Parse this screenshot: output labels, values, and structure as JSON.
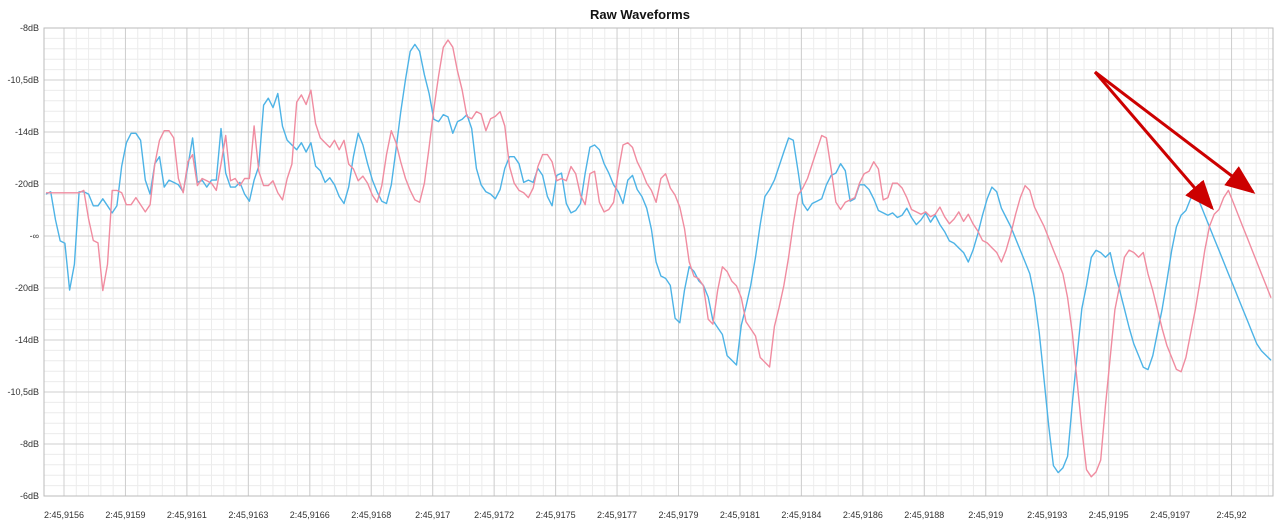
{
  "chart_data": {
    "type": "line",
    "title": "Raw Waveforms",
    "y_tick_labels": [
      "-8dB",
      "-10,5dB",
      "-14dB",
      "-20dB",
      "-∞",
      "-20dB",
      "-14dB",
      "-10,5dB",
      "-8dB",
      "-6dB"
    ],
    "x_tick_labels": [
      "2:45,9156",
      "2:45,9159",
      "2:45,9161",
      "2:45,9163",
      "2:45,9166",
      "2:45,9168",
      "2:45,917",
      "2:45,9172",
      "2:45,9175",
      "2:45,9177",
      "2:45,9179",
      "2:45,9181",
      "2:45,9184",
      "2:45,9186",
      "2:45,9188",
      "2:45,919",
      "2:45,9193",
      "2:45,9195",
      "2:45,9197",
      "2:45,92"
    ],
    "ylim": [
      -1,
      1
    ],
    "grid": true,
    "series": [
      {
        "color": "#4db3e6",
        "values": [
          0.29,
          0.3,
          0.18,
          0.09,
          0.08,
          -0.12,
          -0.01,
          0.3,
          0.3,
          0.29,
          0.24,
          0.24,
          0.27,
          0.24,
          0.21,
          0.24,
          0.41,
          0.51,
          0.55,
          0.55,
          0.52,
          0.35,
          0.29,
          0.42,
          0.45,
          0.32,
          0.35,
          0.34,
          0.33,
          0.3,
          0.41,
          0.53,
          0.34,
          0.35,
          0.32,
          0.35,
          0.35,
          0.57,
          0.38,
          0.32,
          0.32,
          0.34,
          0.29,
          0.26,
          0.35,
          0.41,
          0.67,
          0.7,
          0.66,
          0.72,
          0.58,
          0.52,
          0.5,
          0.48,
          0.51,
          0.47,
          0.51,
          0.41,
          0.39,
          0.34,
          0.36,
          0.33,
          0.28,
          0.25,
          0.32,
          0.45,
          0.55,
          0.5,
          0.42,
          0.35,
          0.3,
          0.26,
          0.25,
          0.33,
          0.48,
          0.64,
          0.78,
          0.9,
          0.93,
          0.9,
          0.8,
          0.72,
          0.61,
          0.6,
          0.63,
          0.62,
          0.55,
          0.6,
          0.61,
          0.63,
          0.57,
          0.4,
          0.33,
          0.3,
          0.29,
          0.27,
          0.31,
          0.4,
          0.45,
          0.45,
          0.42,
          0.34,
          0.35,
          0.34,
          0.4,
          0.37,
          0.28,
          0.24,
          0.37,
          0.38,
          0.25,
          0.21,
          0.22,
          0.25,
          0.38,
          0.49,
          0.5,
          0.48,
          0.42,
          0.38,
          0.33,
          0.3,
          0.25,
          0.35,
          0.37,
          0.31,
          0.28,
          0.23,
          0.14,
          0.0,
          -0.06,
          -0.07,
          -0.1,
          -0.24,
          -0.26,
          -0.12,
          -0.02,
          -0.04,
          -0.08,
          -0.1,
          -0.15,
          -0.25,
          -0.28,
          -0.31,
          -0.4,
          -0.42,
          -0.44,
          -0.27,
          -0.19,
          -0.1,
          0.02,
          0.16,
          0.28,
          0.31,
          0.35,
          0.41,
          0.47,
          0.53,
          0.52,
          0.39,
          0.25,
          0.22,
          0.25,
          0.26,
          0.27,
          0.33,
          0.37,
          0.38,
          0.42,
          0.39,
          0.26,
          0.27,
          0.33,
          0.33,
          0.31,
          0.27,
          0.22,
          0.21,
          0.2,
          0.21,
          0.19,
          0.2,
          0.23,
          0.19,
          0.16,
          0.18,
          0.21,
          0.17,
          0.2,
          0.16,
          0.13,
          0.09,
          0.08,
          0.06,
          0.04,
          0.0,
          0.05,
          0.12,
          0.2,
          0.27,
          0.32,
          0.3,
          0.23,
          0.19,
          0.15,
          0.1,
          0.05,
          0.0,
          -0.05,
          -0.15,
          -0.3,
          -0.5,
          -0.7,
          -0.87,
          -0.9,
          -0.88,
          -0.83,
          -0.6,
          -0.4,
          -0.2,
          -0.1,
          0.02,
          0.05,
          0.04,
          0.02,
          0.04,
          -0.05,
          -0.12,
          -0.2,
          -0.28,
          -0.35,
          -0.4,
          -0.45,
          -0.46,
          -0.4,
          -0.3,
          -0.2,
          -0.08,
          0.05,
          0.15,
          0.2,
          0.22,
          0.27,
          0.3,
          0.25,
          0.2,
          0.15,
          0.1,
          0.05,
          0.0,
          -0.05,
          -0.1,
          -0.15,
          -0.2,
          -0.25,
          -0.3,
          -0.35,
          -0.38,
          -0.4,
          -0.42
        ],
        "values_display": "blue"
      },
      {
        "color": "#f08ca0",
        "values": []
      }
    ]
  }
}
